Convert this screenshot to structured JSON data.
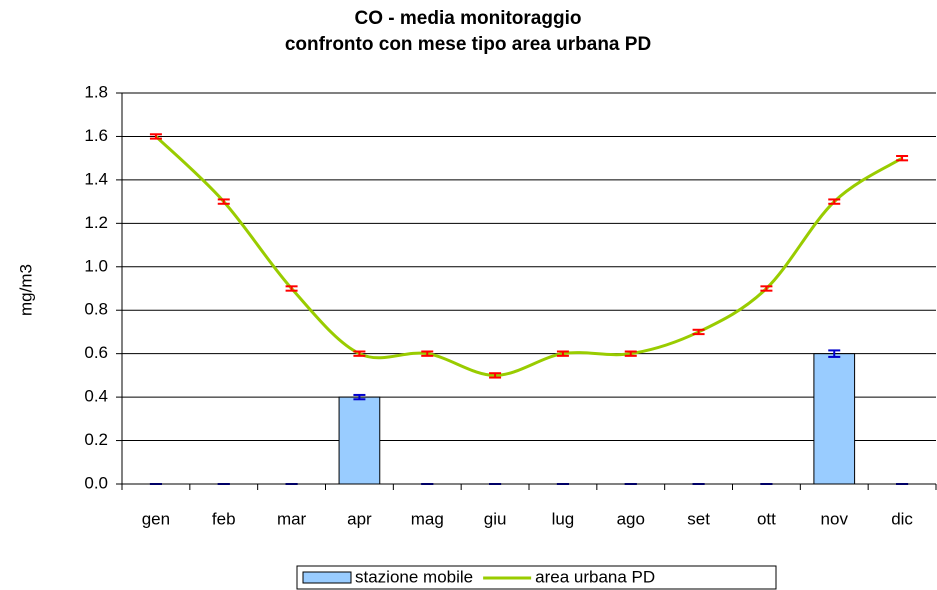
{
  "chart_data": {
    "type": "bar-line",
    "title": "CO - media monitoraggio",
    "subtitle": "confronto con mese tipo area urbana PD",
    "y_label": "mg/m3",
    "categories": [
      "gen",
      "feb",
      "mar",
      "apr",
      "mag",
      "giu",
      "lug",
      "ago",
      "set",
      "ott",
      "nov",
      "dic"
    ],
    "series": [
      {
        "name": "stazione mobile",
        "type": "bar",
        "color": "#99ccff",
        "error_color": "#0000cc",
        "values": [
          0,
          0,
          0,
          0.4,
          0,
          0,
          0,
          0,
          0,
          0,
          0.6,
          0
        ],
        "errors": [
          0,
          0,
          0,
          0.01,
          0,
          0,
          0,
          0,
          0,
          0,
          0.015,
          0
        ]
      },
      {
        "name": "area urbana PD",
        "type": "line",
        "color": "#99cc00",
        "error_color": "#ff0000",
        "values": [
          1.6,
          1.3,
          0.9,
          0.6,
          0.6,
          0.5,
          0.6,
          0.6,
          0.7,
          0.9,
          1.3,
          1.5
        ],
        "errors": [
          0.01,
          0.01,
          0.01,
          0.01,
          0.01,
          0.01,
          0.01,
          0.01,
          0.01,
          0.01,
          0.01,
          0.01
        ]
      }
    ],
    "ylim": [
      0,
      1.8
    ],
    "yticks": [
      {
        "value": 0,
        "label": "0.0"
      },
      0.2,
      0.4,
      0.6,
      0.8,
      {
        "value": 1,
        "label": "1.0"
      },
      1.2,
      1.4,
      1.6,
      1.8
    ],
    "grid": true,
    "legend": "bottom"
  }
}
